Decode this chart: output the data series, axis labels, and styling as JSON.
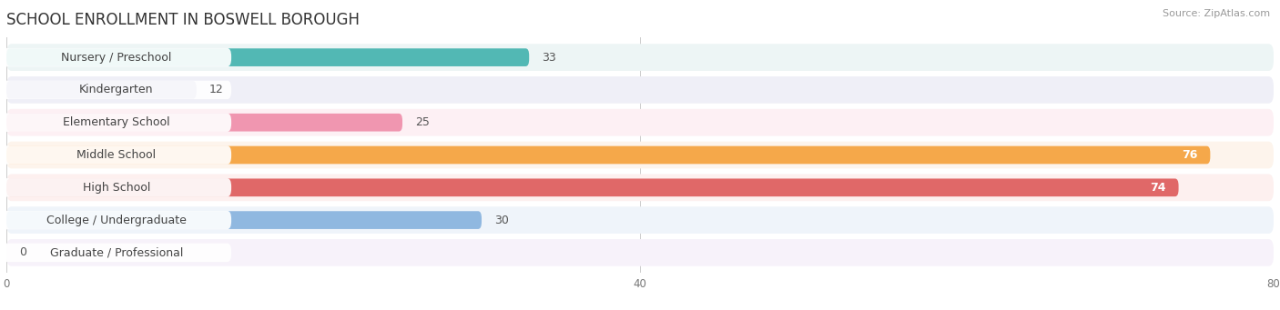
{
  "title": "SCHOOL ENROLLMENT IN BOSWELL BOROUGH",
  "source": "Source: ZipAtlas.com",
  "categories": [
    "Nursery / Preschool",
    "Kindergarten",
    "Elementary School",
    "Middle School",
    "High School",
    "College / Undergraduate",
    "Graduate / Professional"
  ],
  "values": [
    33,
    12,
    25,
    76,
    74,
    30,
    0
  ],
  "bar_colors": [
    "#52b8b4",
    "#9898cc",
    "#f096b0",
    "#f5a84a",
    "#e06868",
    "#90b8e0",
    "#c8a8d8"
  ],
  "bar_row_colors": [
    "#edf5f5",
    "#efeff7",
    "#fdf0f4",
    "#fdf4ec",
    "#fdf0ef",
    "#eff4fa",
    "#f7f2fa"
  ],
  "label_colors": [
    "#52b8b4",
    "#9898cc",
    "#f096b0",
    "#f5a84a",
    "#e06868",
    "#90b8e0",
    "#c8a8d8"
  ],
  "xlim": [
    0,
    80
  ],
  "xticks": [
    0,
    40,
    80
  ],
  "background_color": "#ffffff",
  "title_fontsize": 12,
  "source_fontsize": 8,
  "label_fontsize": 9,
  "value_fontsize": 9
}
